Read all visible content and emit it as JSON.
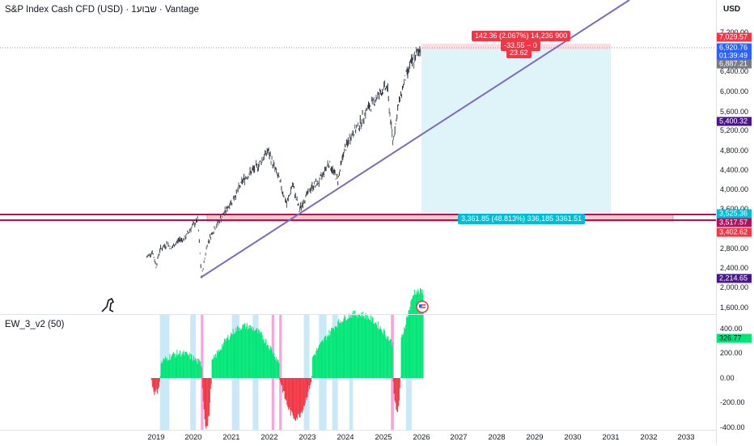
{
  "header": {
    "title": "S&P Index Cash CFD (USD) · 1שבוע · Vantage"
  },
  "indicator": {
    "title": "EW_3_v2 (50)"
  },
  "axis": {
    "currency": "USD",
    "ticks": [
      "7,200.00",
      "6,400.00",
      "6,000.00",
      "5,600.00",
      "5,200.00",
      "4,800.00",
      "4,400.00",
      "4,000.00",
      "3,600.00",
      "2,800.00",
      "2,400.00",
      "2,000.00",
      "1,600.00"
    ],
    "ind_ticks": [
      "400.00",
      "200.00",
      "0.00",
      "-200.00",
      "-400.00"
    ],
    "tags": {
      "t1": "7,029.57",
      "t2": "6,920.76",
      "t3": "01:39:49",
      "t4": "6,887.21",
      "t5": "5,400.32",
      "t6": "3,525.36",
      "t7": "3,517.57",
      "t8": "3,402.62",
      "t9": "2,214.65",
      "t10": "326.77"
    },
    "colors": {
      "red": "#f23645",
      "blue": "#2962ff",
      "gray": "#787b86",
      "purple": "#4a148c",
      "teal": "#00bcd4",
      "green": "#00e676"
    }
  },
  "time_axis": [
    "2019",
    "2020",
    "2021",
    "2022",
    "2023",
    "2024",
    "2025",
    "2026",
    "2027",
    "2028",
    "2029",
    "2030",
    "2031",
    "2032",
    "2033"
  ],
  "position": {
    "target_label": "142.36 (2.067%) 14,236 900",
    "mid_label": "-33.55 − 0",
    "ratio_label": "23.62",
    "stop_label": "3,361.85 (48.813%) 336,185 3361.51"
  },
  "chart_data": {
    "type": "candlestick",
    "x_ticks": [
      "2019",
      "2020",
      "2021",
      "2022",
      "2023",
      "2024",
      "2025",
      "2026",
      "2027",
      "2028",
      "2029",
      "2030",
      "2031",
      "2032",
      "2033"
    ],
    "y_range": [
      1600,
      7200
    ],
    "series": [
      {
        "values": [
          [
            2018.75,
            2620
          ],
          [
            2018.9,
            2740
          ],
          [
            2019.0,
            2450
          ],
          [
            2019.1,
            2780
          ],
          [
            2019.3,
            2900
          ],
          [
            2019.4,
            2800
          ],
          [
            2019.6,
            2980
          ],
          [
            2019.75,
            3000
          ],
          [
            2019.9,
            3200
          ],
          [
            2020.1,
            3380
          ],
          [
            2020.2,
            2220
          ],
          [
            2020.35,
            2900
          ],
          [
            2020.5,
            3150
          ],
          [
            2020.7,
            3400
          ],
          [
            2020.9,
            3650
          ],
          [
            2021.1,
            3900
          ],
          [
            2021.3,
            4200
          ],
          [
            2021.5,
            4350
          ],
          [
            2021.7,
            4500
          ],
          [
            2021.95,
            4790
          ],
          [
            2022.1,
            4500
          ],
          [
            2022.25,
            4200
          ],
          [
            2022.45,
            3700
          ],
          [
            2022.6,
            4100
          ],
          [
            2022.78,
            3580
          ],
          [
            2022.95,
            3850
          ],
          [
            2023.1,
            4050
          ],
          [
            2023.3,
            4150
          ],
          [
            2023.55,
            4550
          ],
          [
            2023.8,
            4200
          ],
          [
            2023.95,
            4750
          ],
          [
            2024.15,
            5100
          ],
          [
            2024.35,
            5300
          ],
          [
            2024.55,
            5600
          ],
          [
            2024.75,
            5800
          ],
          [
            2024.95,
            6000
          ],
          [
            2025.1,
            6100
          ],
          [
            2025.25,
            4980
          ],
          [
            2025.4,
            5700
          ],
          [
            2025.55,
            6200
          ],
          [
            2025.7,
            6500
          ],
          [
            2025.85,
            6700
          ],
          [
            2026.0,
            6920
          ]
        ]
      }
    ],
    "indicator": {
      "name": "EW_3_v2 (50)",
      "last_value": 326.77,
      "range": [
        -400,
        400
      ]
    }
  }
}
